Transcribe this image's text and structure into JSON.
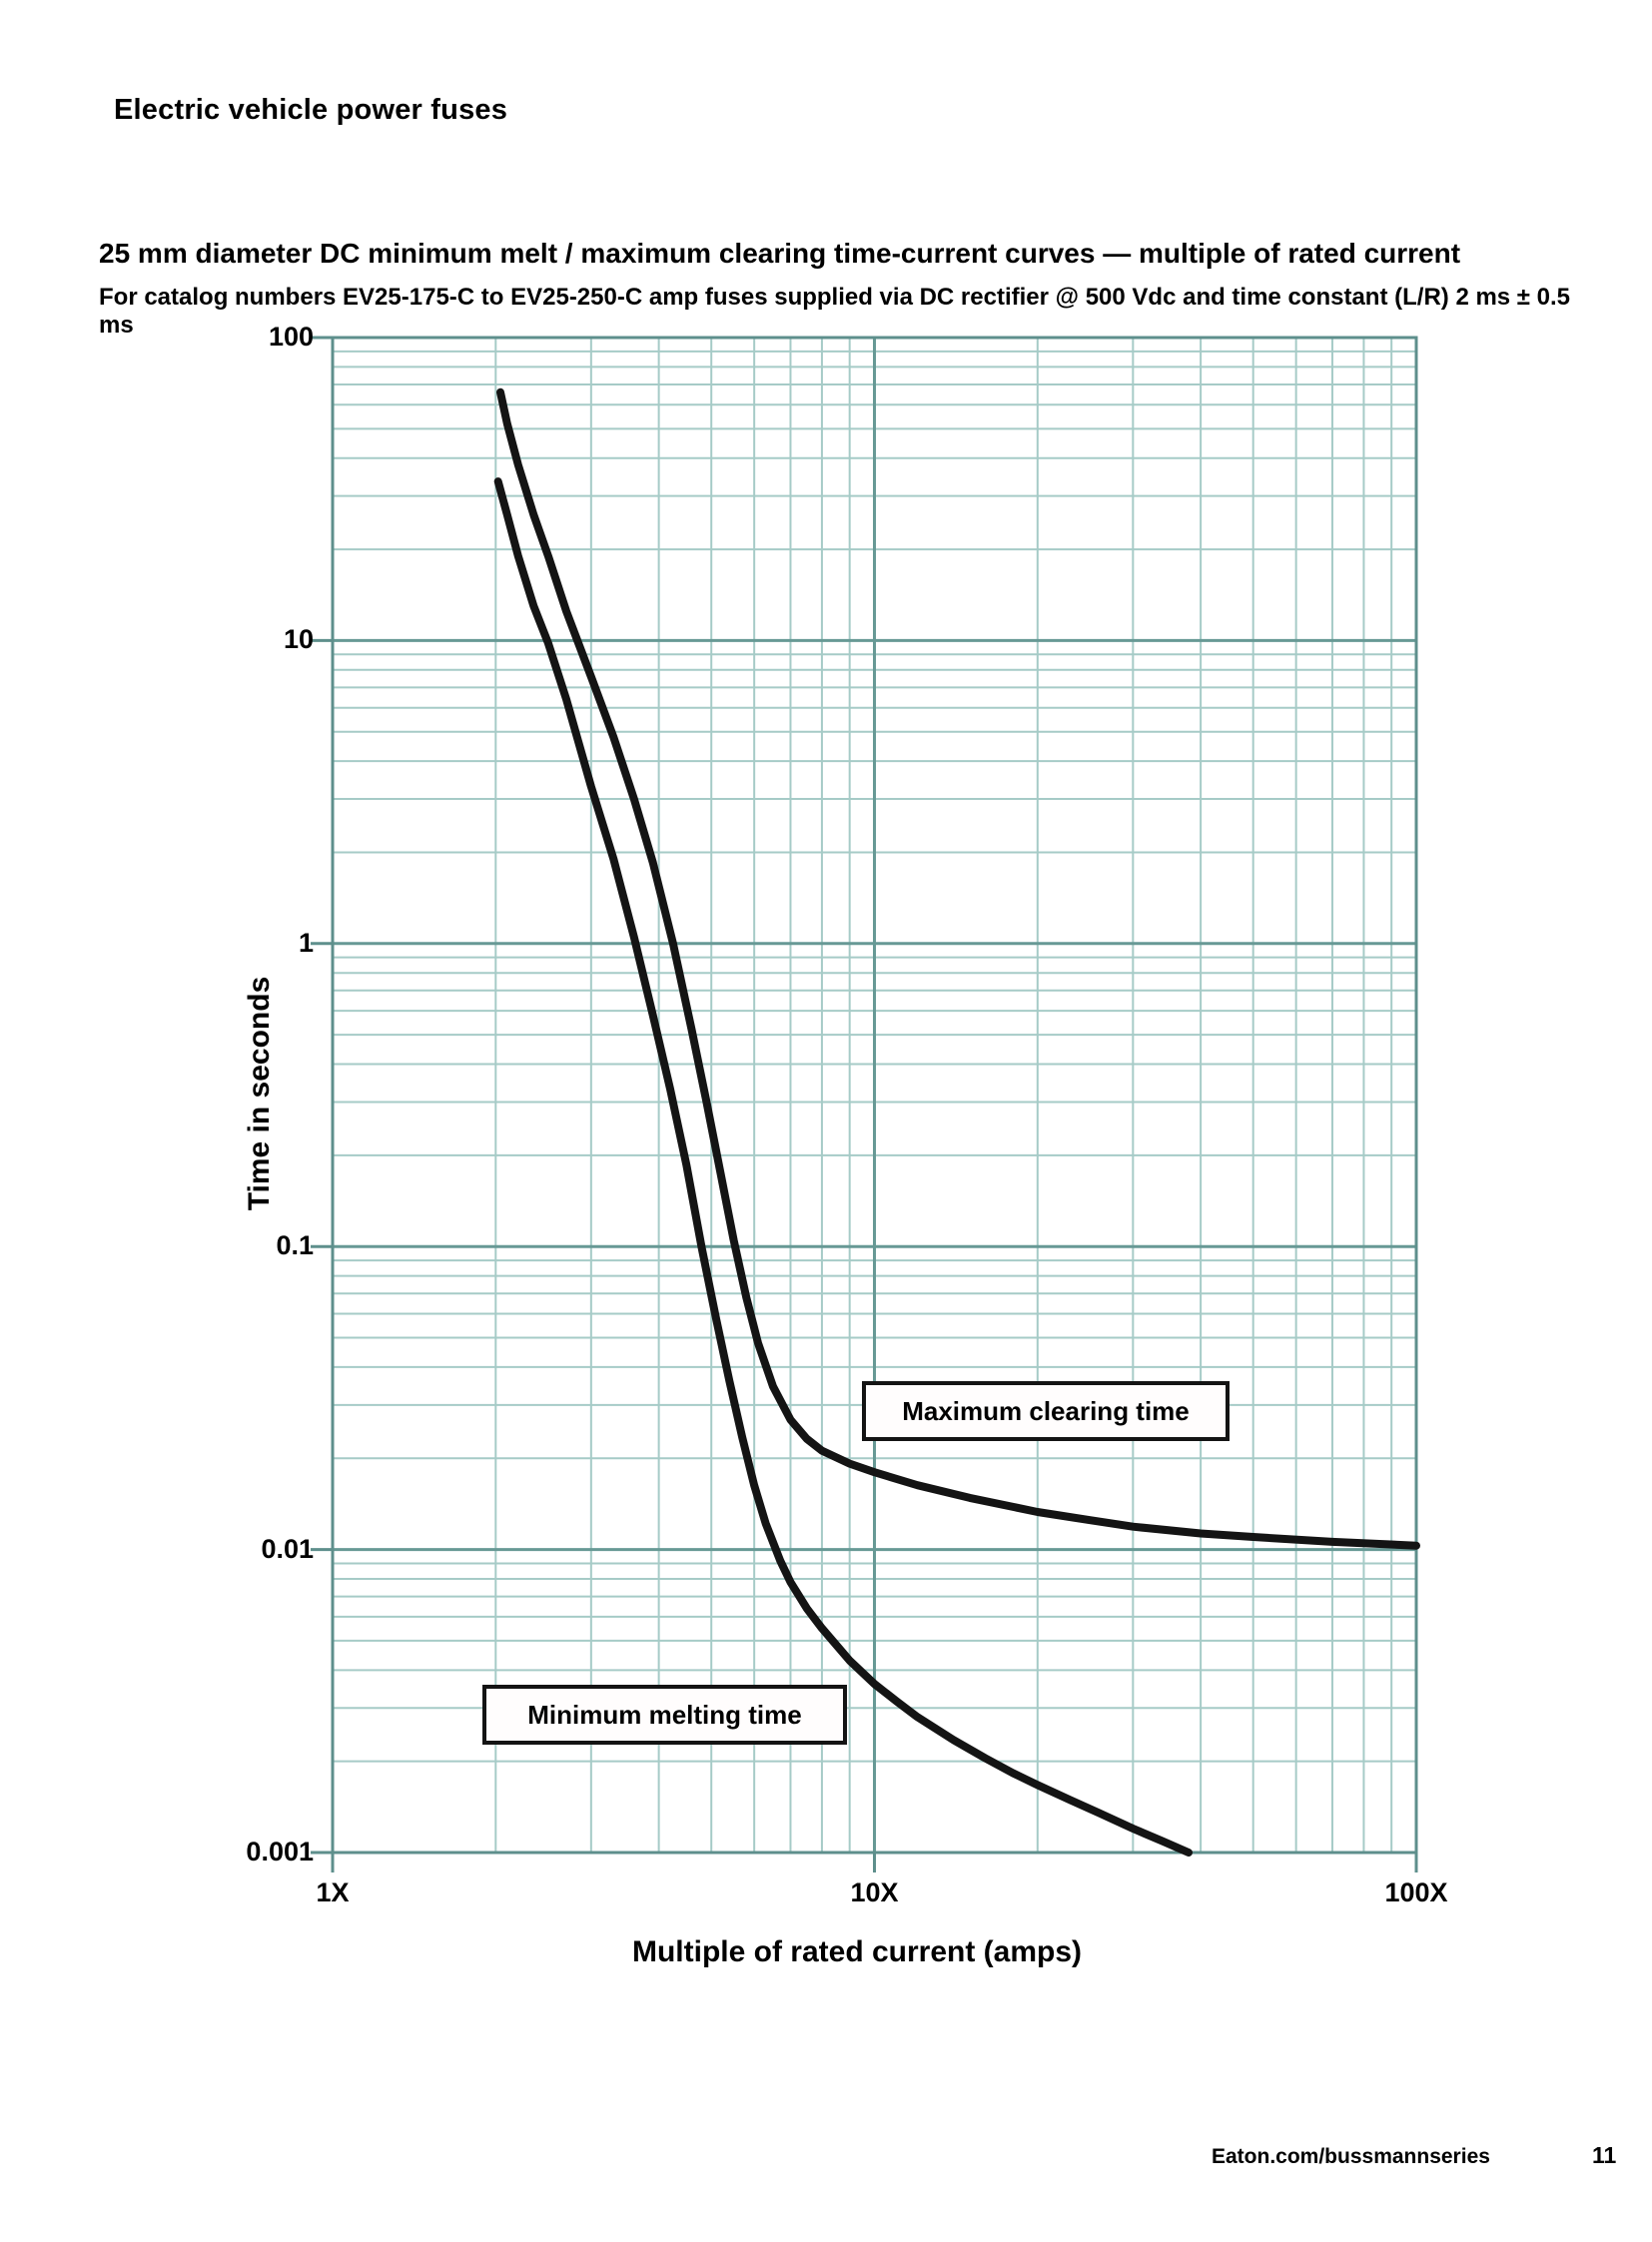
{
  "page": {
    "header": "Electric vehicle power fuses",
    "title": "25 mm diameter DC minimum melt / maximum clearing time-current curves — multiple of rated current",
    "subtitle": "For catalog numbers EV25-175-C to EV25-250-C amp fuses supplied via DC rectifier @ 500 Vdc and time constant (L/R) 2 ms ± 0.5 ms",
    "footer_link": "Eaton.com/bussmannseries",
    "page_number": "11"
  },
  "chart_data": {
    "type": "line",
    "title": "25 mm diameter DC minimum melt / maximum clearing time-current curves — multiple of rated current",
    "xlabel": "Multiple of rated current (amps)",
    "ylabel": "Time in seconds",
    "x_axis": {
      "scale": "log",
      "min": 1,
      "max": 100,
      "tick_values": [
        1,
        10,
        100
      ],
      "tick_labels": [
        "1X",
        "10X",
        "100X"
      ]
    },
    "y_axis": {
      "scale": "log",
      "min": 0.001,
      "max": 100,
      "tick_values": [
        100,
        10,
        1,
        0.1,
        0.01,
        0.001
      ],
      "tick_labels": [
        "100",
        "10",
        "1",
        "0.1",
        "0.01",
        "0.001"
      ]
    },
    "grid": "log-log with minor gridlines on both axes",
    "legend_position": "labeled boxes on plot",
    "series": [
      {
        "name": "Maximum clearing time",
        "points": [
          [
            2.04,
            66
          ],
          [
            2.1,
            52
          ],
          [
            2.2,
            38
          ],
          [
            2.35,
            26
          ],
          [
            2.5,
            19
          ],
          [
            2.7,
            12.5
          ],
          [
            3.0,
            7.6
          ],
          [
            3.3,
            4.8
          ],
          [
            3.6,
            3.0
          ],
          [
            3.9,
            1.85
          ],
          [
            4.25,
            1.0
          ],
          [
            4.6,
            0.52
          ],
          [
            4.9,
            0.3
          ],
          [
            5.2,
            0.175
          ],
          [
            5.5,
            0.105
          ],
          [
            5.8,
            0.068
          ],
          [
            6.1,
            0.048
          ],
          [
            6.5,
            0.0345
          ],
          [
            7.0,
            0.0268
          ],
          [
            7.5,
            0.0232
          ],
          [
            8.0,
            0.0212
          ],
          [
            9.0,
            0.0192
          ],
          [
            10,
            0.018
          ],
          [
            12,
            0.0163
          ],
          [
            15,
            0.0148
          ],
          [
            20,
            0.0133
          ],
          [
            25,
            0.0125
          ],
          [
            30,
            0.0119
          ],
          [
            40,
            0.0113
          ],
          [
            50,
            0.011
          ],
          [
            70,
            0.0106
          ],
          [
            100,
            0.0103
          ]
        ]
      },
      {
        "name": "Minimum melting time",
        "points": [
          [
            2.02,
            33.5
          ],
          [
            2.1,
            26
          ],
          [
            2.2,
            19
          ],
          [
            2.35,
            13
          ],
          [
            2.5,
            9.8
          ],
          [
            2.7,
            6.4
          ],
          [
            3.0,
            3.3
          ],
          [
            3.3,
            1.9
          ],
          [
            3.6,
            1.05
          ],
          [
            3.9,
            0.58
          ],
          [
            4.2,
            0.33
          ],
          [
            4.5,
            0.185
          ],
          [
            4.8,
            0.099
          ],
          [
            5.1,
            0.058
          ],
          [
            5.4,
            0.036
          ],
          [
            5.7,
            0.0235
          ],
          [
            6.0,
            0.0163
          ],
          [
            6.3,
            0.0122
          ],
          [
            6.7,
            0.0092
          ],
          [
            7.0,
            0.0078
          ],
          [
            7.5,
            0.0064
          ],
          [
            8.0,
            0.0055
          ],
          [
            9.0,
            0.0043
          ],
          [
            10,
            0.0036
          ],
          [
            11,
            0.00315
          ],
          [
            12,
            0.0028
          ],
          [
            14,
            0.00235
          ],
          [
            16,
            0.00205
          ],
          [
            18,
            0.00183
          ],
          [
            20,
            0.00167
          ],
          [
            23,
            0.00149
          ],
          [
            26,
            0.00135
          ],
          [
            30,
            0.0012
          ],
          [
            34,
            0.00109
          ],
          [
            38,
            0.001
          ]
        ]
      }
    ],
    "annotations": [
      {
        "text": "Maximum clearing time",
        "style": "boxed label",
        "refers_to": "Maximum clearing time"
      },
      {
        "text": "Minimum melting time",
        "style": "boxed label",
        "refers_to": "Minimum melting time"
      }
    ],
    "colors": {
      "curve": "#141414",
      "grid_minor": "#a6cbc7",
      "grid_major": "#679995",
      "axis": "#5e8f8c",
      "text": "#000000",
      "label_box_border": "#141414",
      "label_box_bg": "#fffdfd"
    }
  }
}
